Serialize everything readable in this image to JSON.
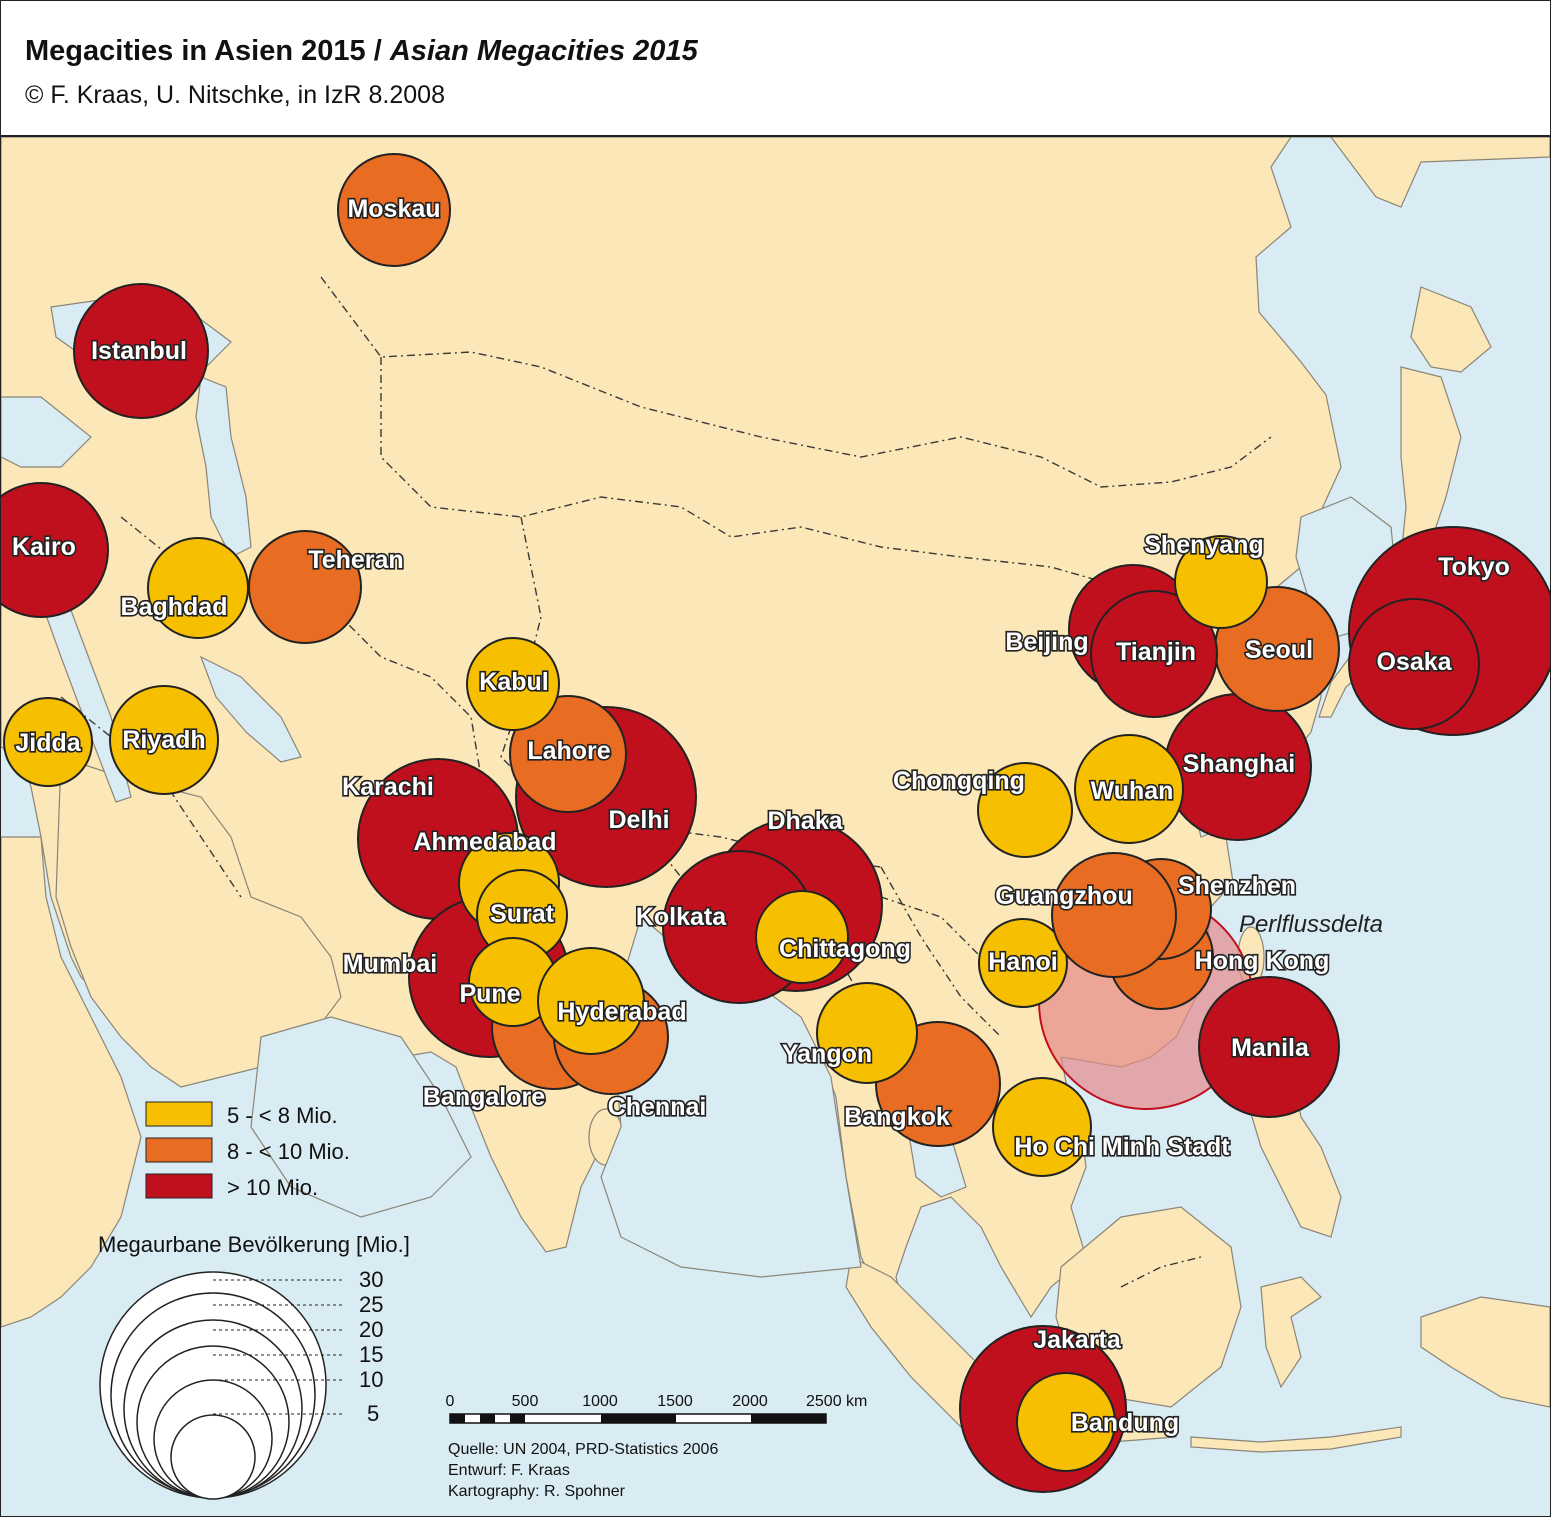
{
  "header": {
    "title_de": "Megacities in Asien 2015 / ",
    "title_en": "Asian Megacities 2015",
    "copyright": "©  F. Kraas, U. Nitschke, in IzR 8.2008"
  },
  "colors": {
    "water": "#d9ecf4",
    "land": "#fbe7b7",
    "class_5_8": "#f6c000",
    "class_8_10": "#e86c22",
    "class_gt10": "#c0101e",
    "delta": "#e58a8a"
  },
  "cities": [
    {
      "name": "Moskau",
      "class": "8_10"
    },
    {
      "name": "Istanbul",
      "class": "gt10"
    },
    {
      "name": "Kairo",
      "class": "gt10"
    },
    {
      "name": "Baghdad",
      "class": "5_8"
    },
    {
      "name": "Teheran",
      "class": "8_10"
    },
    {
      "name": "Jidda",
      "class": "5_8"
    },
    {
      "name": "Riyadh",
      "class": "5_8"
    },
    {
      "name": "Kabul",
      "class": "5_8"
    },
    {
      "name": "Lahore",
      "class": "8_10"
    },
    {
      "name": "Delhi",
      "class": "gt10"
    },
    {
      "name": "Karachi",
      "class": "gt10"
    },
    {
      "name": "Ahmedabad",
      "class": "5_8"
    },
    {
      "name": "Surat",
      "class": "5_8"
    },
    {
      "name": "Mumbai",
      "class": "gt10"
    },
    {
      "name": "Pune",
      "class": "5_8"
    },
    {
      "name": "Hyderabad",
      "class": "5_8"
    },
    {
      "name": "Bangalore",
      "class": "8_10"
    },
    {
      "name": "Chennai",
      "class": "8_10"
    },
    {
      "name": "Dhaka",
      "class": "gt10"
    },
    {
      "name": "Kolkata",
      "class": "gt10"
    },
    {
      "name": "Chittagong",
      "class": "5_8"
    },
    {
      "name": "Yangon",
      "class": "5_8"
    },
    {
      "name": "Bangkok",
      "class": "8_10"
    },
    {
      "name": "Ho Chi Minh Stadt",
      "class": "5_8"
    },
    {
      "name": "Hanoi",
      "class": "5_8"
    },
    {
      "name": "Chongqing",
      "class": "5_8"
    },
    {
      "name": "Wuhan",
      "class": "5_8"
    },
    {
      "name": "Shanghai",
      "class": "gt10"
    },
    {
      "name": "Beijing",
      "class": "gt10"
    },
    {
      "name": "Tianjin",
      "class": "gt10"
    },
    {
      "name": "Shenyang",
      "class": "5_8"
    },
    {
      "name": "Seoul",
      "class": "8_10"
    },
    {
      "name": "Tokyo",
      "class": "gt10"
    },
    {
      "name": "Osaka",
      "class": "gt10"
    },
    {
      "name": "Guangzhou",
      "class": "8_10"
    },
    {
      "name": "Shenzhen",
      "class": "8_10"
    },
    {
      "name": "Hong Kong",
      "class": "8_10"
    },
    {
      "name": "Manila",
      "class": "gt10"
    },
    {
      "name": "Jakarta",
      "class": "gt10"
    },
    {
      "name": "Bandung",
      "class": "5_8"
    }
  ],
  "delta_label": "Perlflussdelta",
  "legend": {
    "items": [
      {
        "label": "5 - < 8 Mio.",
        "class": "5_8"
      },
      {
        "label": "8 - < 10 Mio.",
        "class": "8_10"
      },
      {
        "label": "> 10 Mio.",
        "class": "gt10"
      }
    ],
    "size_title": "Megaurbane Bevölkerung [Mio.]",
    "size_values": [
      "30",
      "25",
      "20",
      "15",
      "10",
      "5"
    ]
  },
  "scale_bar": {
    "ticks": [
      "0",
      "500",
      "1000",
      "1500",
      "2000",
      "2500 km"
    ]
  },
  "credits": {
    "source": "Quelle: UN 2004, PRD-Statistics 2006",
    "design": "Entwurf: F. Kraas",
    "cartography": "Kartography: R. Spohner"
  }
}
